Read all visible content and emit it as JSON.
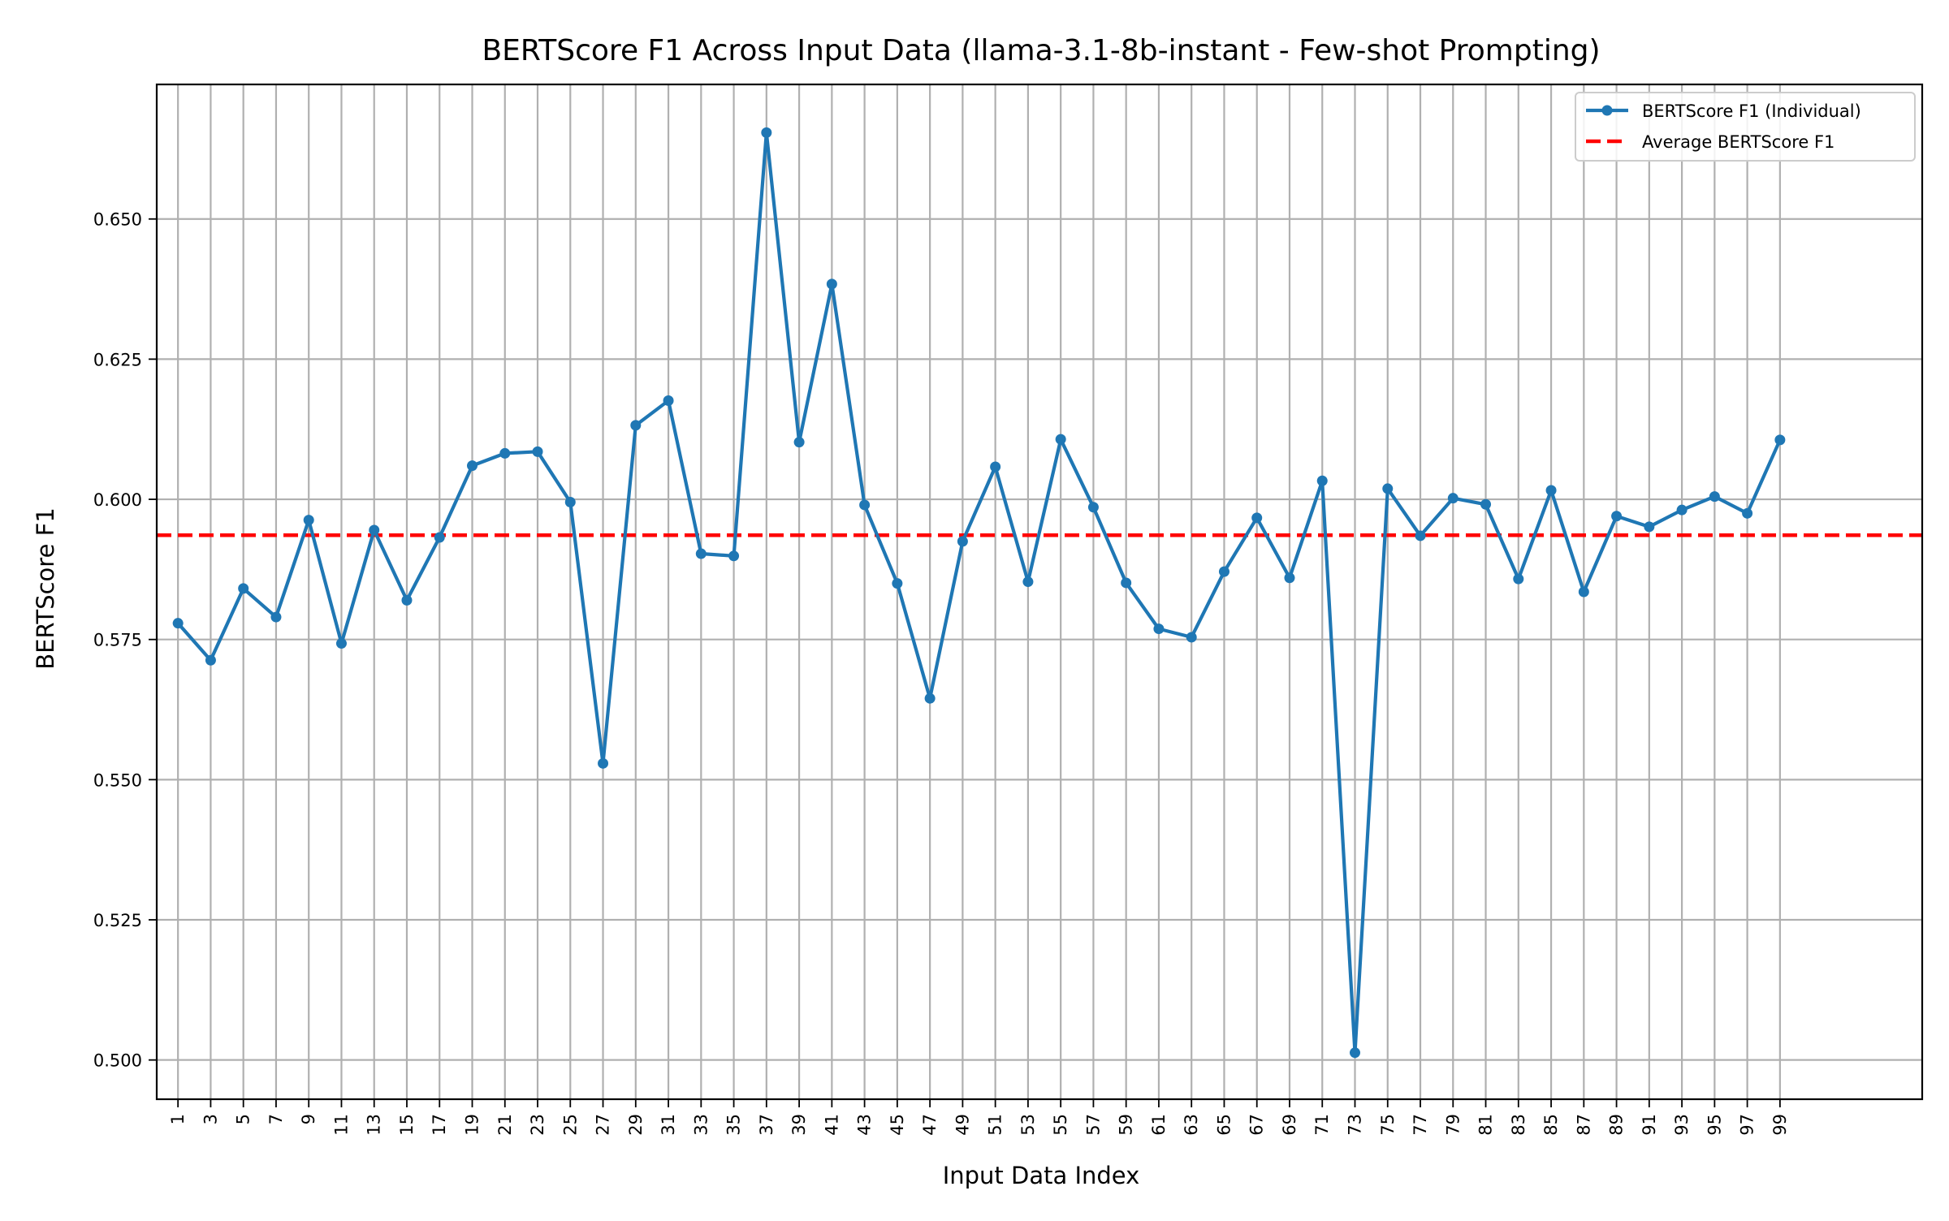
{
  "chart_data": {
    "type": "line",
    "title": "BERTScore F1 Across Input Data (llama-3.1-8b-instant - Few-shot Prompting)",
    "xlabel": "Input Data Index",
    "ylabel": "BERTScore F1",
    "x": [
      1,
      3,
      5,
      7,
      9,
      11,
      13,
      15,
      17,
      19,
      21,
      23,
      25,
      27,
      29,
      31,
      33,
      35,
      37,
      39,
      41,
      43,
      45,
      47,
      49,
      51,
      53,
      55,
      57,
      59,
      61,
      63,
      65,
      67,
      69,
      71,
      73,
      75,
      77,
      79,
      81,
      83,
      85,
      87,
      89,
      91,
      93,
      95,
      97,
      99
    ],
    "x_tick_labels": [
      "1",
      "3",
      "5",
      "7",
      "9",
      "11",
      "13",
      "15",
      "17",
      "19",
      "21",
      "23",
      "25",
      "27",
      "29",
      "31",
      "33",
      "35",
      "37",
      "39",
      "41",
      "43",
      "45",
      "47",
      "49",
      "51",
      "53",
      "55",
      "57",
      "59",
      "61",
      "63",
      "65",
      "67",
      "69",
      "71",
      "73",
      "75",
      "77",
      "79",
      "81",
      "83",
      "85",
      "87",
      "89",
      "91",
      "93",
      "95",
      "97",
      "99"
    ],
    "xlim": [
      -0.3,
      107.7
    ],
    "ylim": [
      0.493,
      0.674
    ],
    "y_ticks": [
      0.5,
      0.525,
      0.55,
      0.575,
      0.6,
      0.625,
      0.65
    ],
    "y_tick_labels": [
      "0.500",
      "0.525",
      "0.550",
      "0.575",
      "0.600",
      "0.625",
      "0.650"
    ],
    "grid": true,
    "legend_position": "top-right",
    "series": [
      {
        "name": "BERTScore F1 (Individual)",
        "color": "#1f77b4",
        "style": "line-with-markers",
        "values": [
          0.5779,
          0.5713,
          0.5841,
          0.579,
          0.5963,
          0.5743,
          0.5945,
          0.582,
          0.5932,
          0.606,
          0.6082,
          0.6085,
          0.5995,
          0.5529,
          0.6132,
          0.6176,
          0.5903,
          0.5899,
          0.6654,
          0.6102,
          0.6384,
          0.599,
          0.585,
          0.5645,
          0.5925,
          0.6058,
          0.5853,
          0.6107,
          0.5986,
          0.5851,
          0.5769,
          0.5754,
          0.5871,
          0.5967,
          0.586,
          0.6033,
          0.5013,
          0.6019,
          0.5935,
          0.6002,
          0.5991,
          0.5858,
          0.6016,
          0.5835,
          0.597,
          0.5951,
          0.5981,
          0.6005,
          0.5975,
          0.6106
        ]
      },
      {
        "name": "Average BERTScore F1",
        "color": "#ff0000",
        "style": "dashed-horizontal",
        "value": 0.5936
      }
    ]
  }
}
